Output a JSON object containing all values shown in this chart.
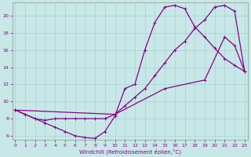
{
  "bg_color": "#c8e8e8",
  "line_color": "#880088",
  "xlabel": "Windchill (Refroidissement éolien,°C)",
  "xlim": [
    -0.3,
    23.3
  ],
  "ylim": [
    5.5,
    21.5
  ],
  "yticks": [
    6,
    8,
    10,
    12,
    14,
    16,
    18,
    20
  ],
  "xticks": [
    0,
    1,
    2,
    3,
    4,
    5,
    6,
    7,
    8,
    9,
    10,
    11,
    12,
    13,
    14,
    15,
    16,
    17,
    18,
    19,
    20,
    21,
    22,
    23
  ],
  "grid_color": "#a8d0d0",
  "curve1_x": [
    0,
    1,
    2,
    3,
    4,
    5,
    6,
    7,
    8,
    9,
    10,
    11,
    12,
    13,
    14,
    15,
    16,
    17,
    18,
    19,
    20,
    21,
    22,
    23
  ],
  "curve1_y": [
    9.0,
    8.5,
    8.0,
    7.5,
    7.0,
    6.5,
    6.0,
    5.8,
    5.7,
    6.5,
    8.3,
    11.5,
    12.0,
    16.0,
    19.2,
    21.0,
    21.2,
    20.8,
    18.7,
    17.5,
    16.2,
    15.0,
    14.2,
    13.5
  ],
  "curve2_x": [
    0,
    10,
    15,
    19,
    21,
    22,
    23
  ],
  "curve2_y": [
    9.0,
    8.5,
    11.5,
    12.5,
    17.5,
    16.5,
    13.5
  ],
  "curve3_x": [
    0,
    1,
    2,
    3,
    4,
    5,
    6,
    7,
    8,
    9,
    10,
    11,
    12,
    13,
    14,
    15,
    16,
    17,
    18,
    19,
    20,
    21,
    22,
    23
  ],
  "curve3_y": [
    9.0,
    8.5,
    8.0,
    7.8,
    8.0,
    8.0,
    8.0,
    8.0,
    8.0,
    8.0,
    8.5,
    9.5,
    10.5,
    11.5,
    13.0,
    14.5,
    16.0,
    17.0,
    18.5,
    19.5,
    21.0,
    21.2,
    20.5,
    13.5
  ]
}
